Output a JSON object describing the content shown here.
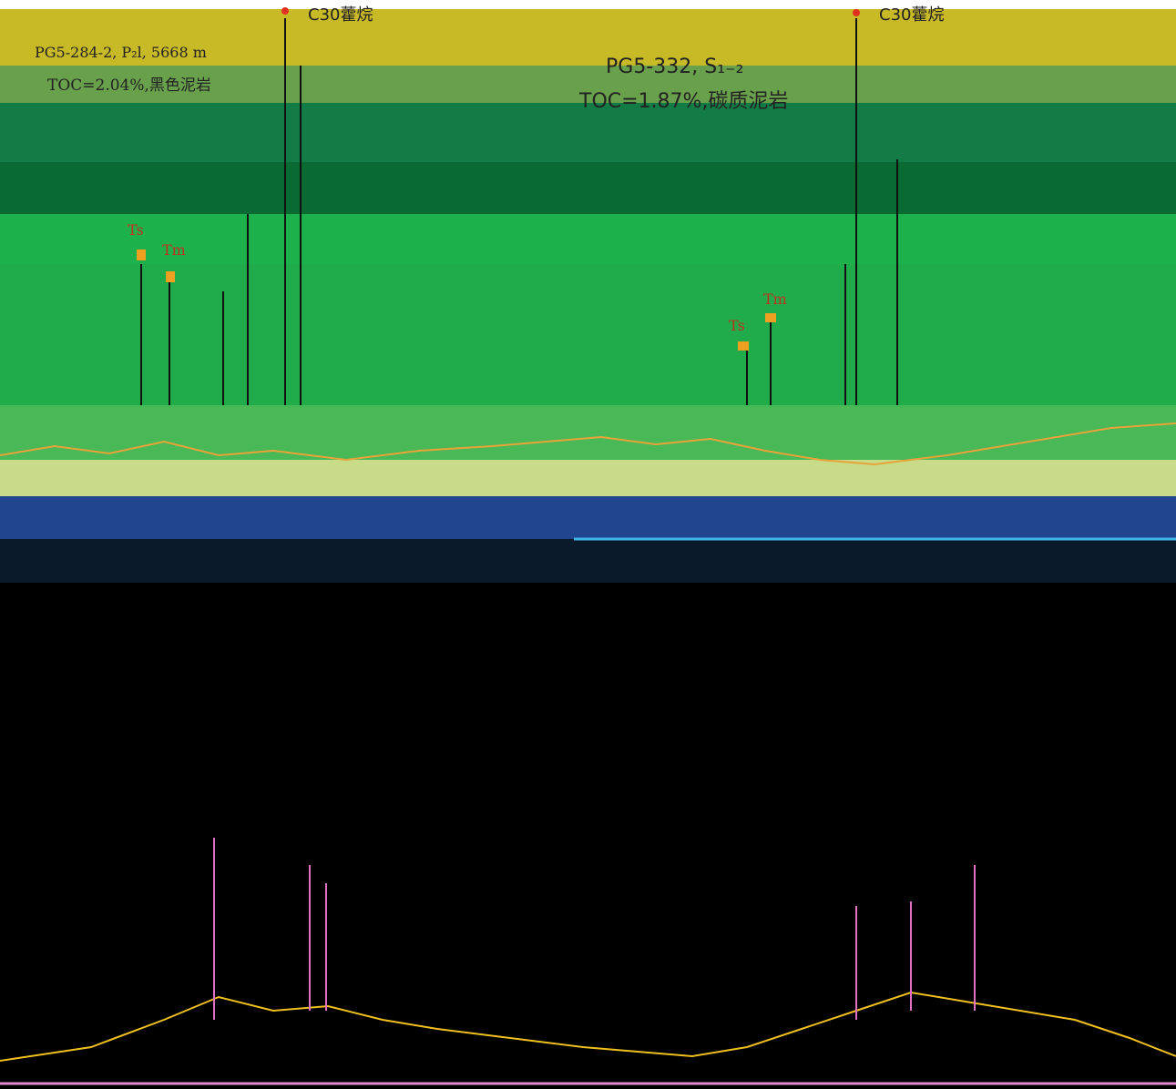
{
  "top_left": {
    "marker": "C30藿烷",
    "sample": "PG5-284-2, P₂l, 5668 m",
    "toc": "TOC=2.04%,黑色泥岩"
  },
  "top_right": {
    "marker": "C30藿烷",
    "sample": "PG5-332, S₁₋₂",
    "toc": "TOC=1.87%,碳质泥岩"
  },
  "peaks": {
    "ts_left": "Ts",
    "tm_left": "Tm",
    "ts_right": "Ts",
    "tm_right": "Tm"
  }
}
